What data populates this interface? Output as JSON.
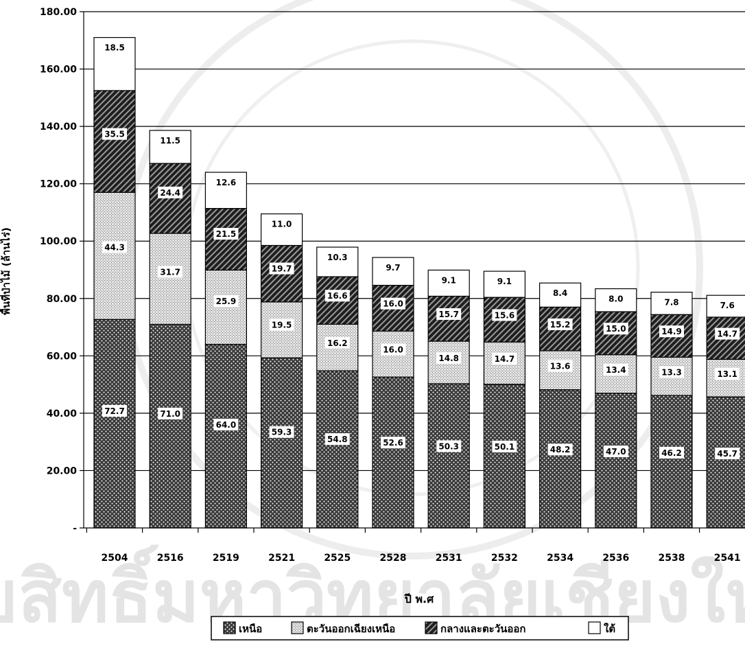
{
  "watermark": "ลิขสิทธิ์มหาวิทยาลัยเชียงใหม่",
  "chart_data": {
    "type": "bar",
    "stacked": true,
    "categories": [
      "2504",
      "2516",
      "2519",
      "2521",
      "2525",
      "2528",
      "2531",
      "2532",
      "2534",
      "2536",
      "2538",
      "2541"
    ],
    "series": [
      {
        "name": "เหนือ",
        "values": [
          72.7,
          71.0,
          64.0,
          59.3,
          54.8,
          52.6,
          50.3,
          50.1,
          48.2,
          47.0,
          46.2,
          45.7
        ],
        "pattern": "dots"
      },
      {
        "name": "ตะวันออกเฉียงเหนือ",
        "values": [
          44.3,
          31.7,
          25.9,
          19.5,
          16.2,
          16.0,
          14.8,
          14.7,
          13.6,
          13.4,
          13.3,
          13.1
        ],
        "pattern": "crosshatch"
      },
      {
        "name": "กลางและตะวันออก",
        "values": [
          35.5,
          24.4,
          21.5,
          19.7,
          16.6,
          16.0,
          15.7,
          15.6,
          15.2,
          15.0,
          14.9,
          14.7
        ],
        "pattern": "diagonal"
      },
      {
        "name": "ใต้",
        "values": [
          18.5,
          11.5,
          12.6,
          11.0,
          10.3,
          9.7,
          9.1,
          9.1,
          8.4,
          8.0,
          7.8,
          7.6
        ],
        "pattern": "white"
      }
    ],
    "value_labels": [
      [
        "72.7",
        "71.0",
        "64.0",
        "59.3",
        "54.8",
        "52.6",
        "50.3",
        "50.1",
        "48.2",
        "47.0",
        "46.2",
        "45.7"
      ],
      [
        "44.3",
        "31.7",
        "25.9",
        "19.5",
        "16.2",
        "16.0",
        "14.8",
        "14.7",
        "13.6",
        "13.4",
        "13.3",
        "13.1"
      ],
      [
        "35.5",
        "24.4",
        "21.5",
        "19.7",
        "16.6",
        "16.0",
        "15.7",
        "15.6",
        "15.2",
        "15.0",
        "14.9",
        "14.7"
      ],
      [
        "18.5",
        "11.5",
        "12.6",
        "11.0",
        "10.3",
        "9.7",
        "9.1",
        "9.1",
        "8.4",
        "8.0",
        "7.8",
        "7.6"
      ]
    ],
    "yticks": [
      "-",
      "20.00",
      "40.00",
      "60.00",
      "80.00",
      "100.00",
      "120.00",
      "140.00",
      "160.00",
      "180.00"
    ],
    "ylim": [
      0,
      180
    ],
    "ylabel": "พื้นที่ป่าไม้ (ล้านไร่)",
    "xlabel": "ปี พ.ศ",
    "grid": true,
    "legend_position": "bottom"
  }
}
